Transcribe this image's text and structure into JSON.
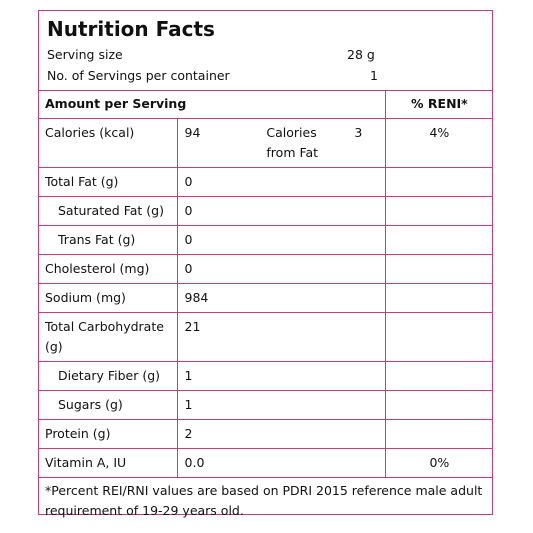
{
  "header": {
    "title": "Nutrition Facts",
    "serving_size": {
      "label": "Serving size",
      "value": "28 g"
    },
    "servings": {
      "label": "No. of Servings per container",
      "value": "1"
    }
  },
  "table": {
    "columns": [
      "Amount per Serving",
      "% RENI*"
    ],
    "rows": [
      {
        "label": "Calories (kcal)",
        "value": "94",
        "sub_label": "Calories from Fat",
        "sub_value": "3",
        "percent": "4%"
      },
      {
        "label": "Total Fat (g)",
        "value": "0"
      },
      {
        "label": "Saturated Fat (g)",
        "value": "0"
      },
      {
        "label": "Trans Fat (g)",
        "value": "0"
      },
      {
        "label": "Cholesterol (mg)",
        "value": "0"
      },
      {
        "label": "Sodium (mg)",
        "value": "984"
      },
      {
        "label": "Total Carbohydrate (g)",
        "value": "21"
      },
      {
        "label": "Dietary Fiber (g)",
        "value": "1"
      },
      {
        "label": "Sugars (g)",
        "value": "1"
      },
      {
        "label": "Protein (g)",
        "value": "2"
      },
      {
        "label": "Vitamin A, IU",
        "value": "0.0",
        "percent": "0%"
      }
    ]
  },
  "footnote": "*Percent REI/RNI values are based on PDRI 2015 reference male adult requirement of 19-29 years old."
}
